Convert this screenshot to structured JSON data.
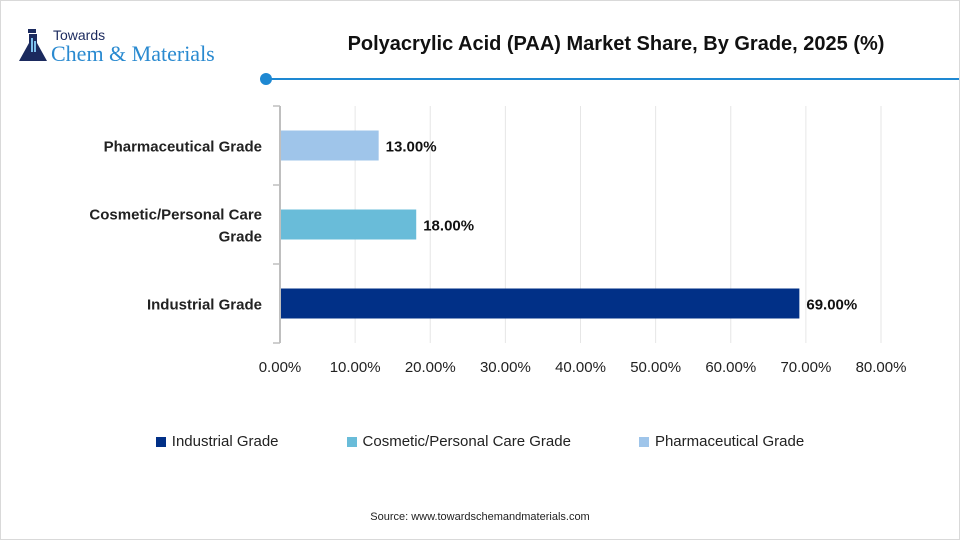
{
  "logo": {
    "top": "Towards",
    "main": "Chem & Materials"
  },
  "chart_data": {
    "type": "bar",
    "orientation": "horizontal",
    "title": "Polyacrylic Acid (PAA) Market Share, By Grade, 2025 (%)",
    "categories": [
      "Pharmaceutical Grade",
      "Cosmetic/Personal Care Grade",
      "Industrial Grade"
    ],
    "category_lines": [
      [
        "Pharmaceutical Grade"
      ],
      [
        "Cosmetic/Personal Care",
        "Grade"
      ],
      [
        "Industrial Grade"
      ]
    ],
    "values": [
      13,
      18,
      69
    ],
    "data_labels": [
      "13.00%",
      "18.00%",
      "69.00%"
    ],
    "colors": [
      "#9fc5ea",
      "#69bcd9",
      "#013087"
    ],
    "xlim": [
      0,
      80
    ],
    "xticks": [
      "0.00%",
      "10.00%",
      "20.00%",
      "30.00%",
      "40.00%",
      "50.00%",
      "60.00%",
      "70.00%",
      "80.00%"
    ],
    "grid": "vertical",
    "legend": {
      "placement": "bottom",
      "entries": [
        "Industrial Grade",
        "Cosmetic/Personal Care Grade",
        "Pharmaceutical Grade"
      ],
      "colors": [
        "#013087",
        "#69bcd9",
        "#9fc5ea"
      ]
    }
  },
  "source": "Source: www.towardschemandmaterials.com"
}
